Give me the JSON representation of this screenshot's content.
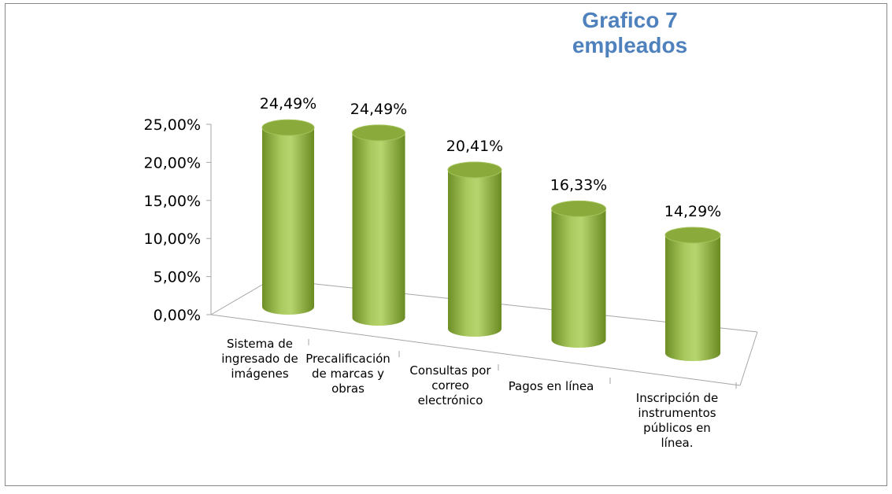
{
  "chart_data": {
    "type": "bar",
    "title": "Grafico 7 empleados",
    "categories": [
      "Sistema de ingresado de imágenes",
      "Precalificación de marcas y obras",
      "Consultas por correo electrónico",
      "Pagos en línea",
      "Inscripción de instrumentos públicos en línea."
    ],
    "values": [
      24.49,
      24.49,
      20.41,
      16.33,
      14.29
    ],
    "value_labels": [
      "24,49%",
      "24,49%",
      "20,41%",
      "16,33%",
      "14,29%"
    ],
    "color": "#9bbb59",
    "ylim": [
      0,
      25
    ],
    "yticks": [
      {
        "value": 0,
        "label": "0,00%"
      },
      {
        "value": 5,
        "label": "5,00%"
      },
      {
        "value": 10,
        "label": "10,00%"
      },
      {
        "value": 15,
        "label": "15,00%"
      },
      {
        "value": 20,
        "label": "20,00%"
      },
      {
        "value": 25,
        "label": "25,00%"
      }
    ]
  }
}
